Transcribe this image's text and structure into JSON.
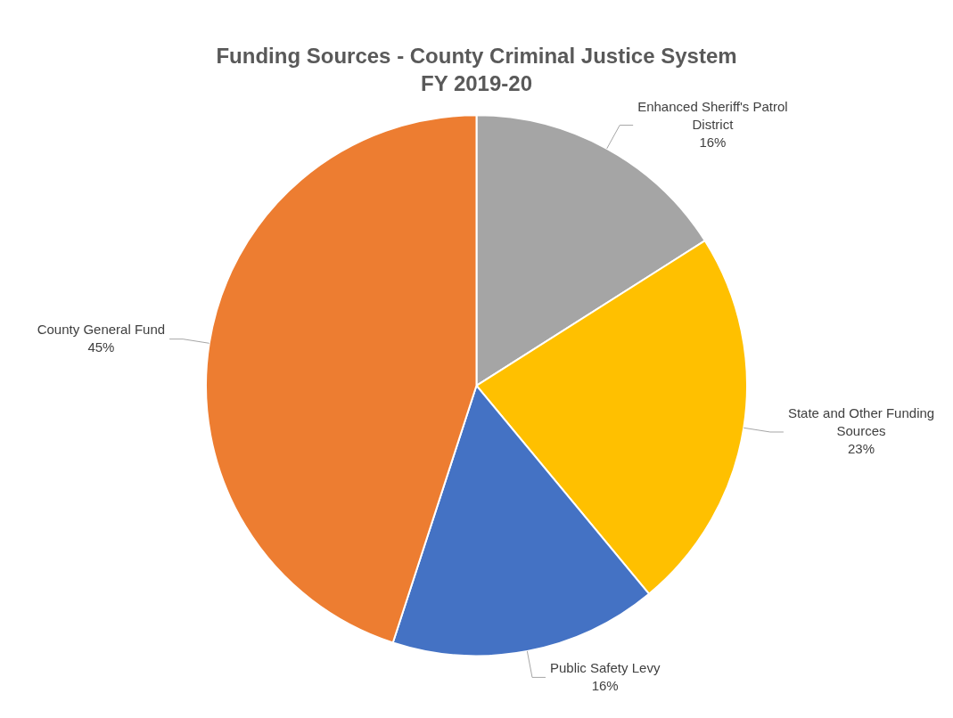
{
  "chart_data": {
    "type": "pie",
    "title": "Funding Sources - County Criminal Justice System",
    "subtitle": "FY 2019-20",
    "categories": [
      "Enhanced Sheriff's Patrol District",
      "State and Other Funding Sources",
      "Public Safety Levy",
      "County General Fund"
    ],
    "values": [
      16,
      23,
      16,
      45
    ],
    "colors": [
      "#a5a5a5",
      "#ffc000",
      "#4472c4",
      "#ed7d31"
    ],
    "value_labels": [
      "16%",
      "23%",
      "16%",
      "45%"
    ],
    "legend": false
  }
}
